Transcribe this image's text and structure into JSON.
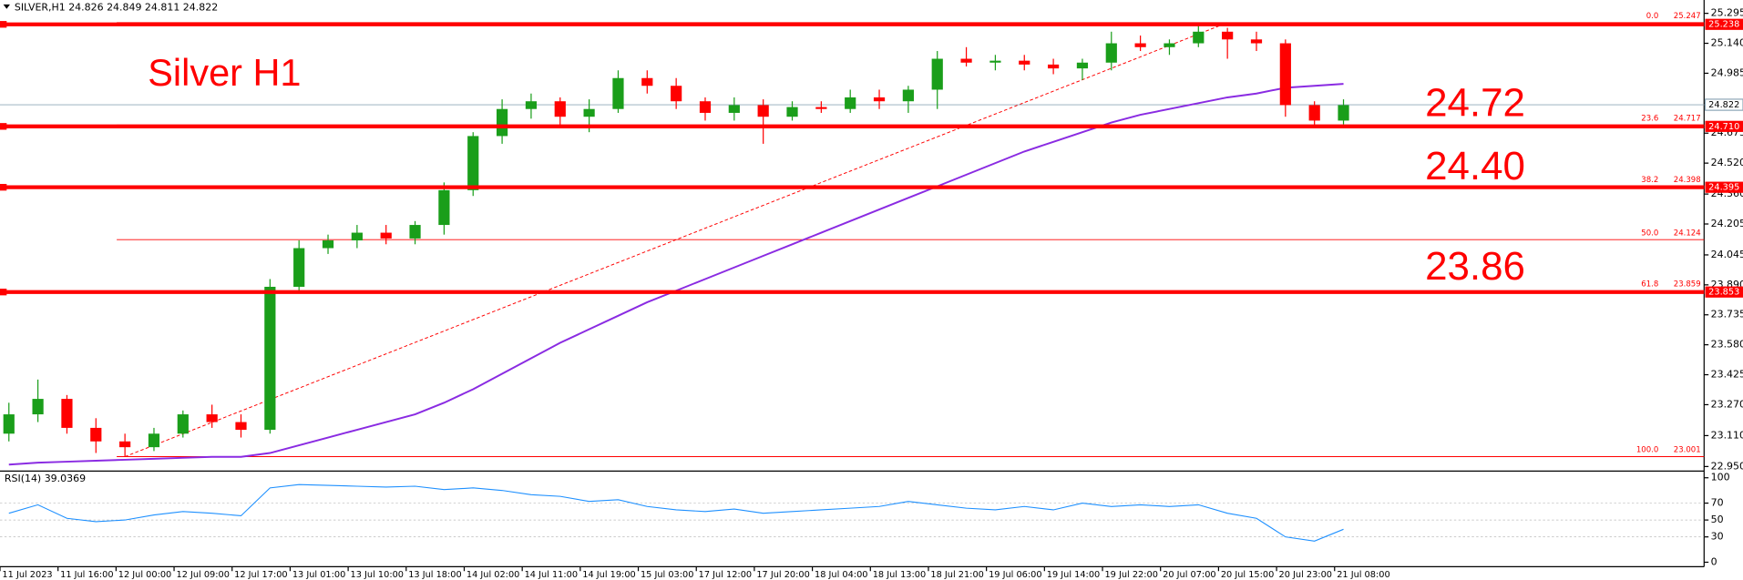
{
  "chart_data": {
    "type": "candlestick",
    "header": "SILVER,H1 24.826 24.849 24.811 24.822",
    "title": "Silver H1",
    "categories": [
      "11 Jul 2023",
      null,
      "11 Jul 16:00",
      null,
      "12 Jul 00:00",
      null,
      "12 Jul 09:00",
      null,
      "12 Jul 17:00",
      null,
      "13 Jul 01:00",
      null,
      "13 Jul 10:00",
      null,
      "13 Jul 18:00",
      null,
      "14 Jul 02:00",
      null,
      "14 Jul 11:00",
      null,
      "14 Jul 19:00",
      null,
      "15 Jul 03:00",
      null,
      "17 Jul 12:00",
      null,
      "17 Jul 20:00",
      null,
      "18 Jul 04:00",
      null,
      "18 Jul 13:00",
      null,
      "18 Jul 21:00",
      null,
      "19 Jul 06:00",
      null,
      "19 Jul 14:00",
      null,
      "19 Jul 22:00",
      null,
      "20 Jul 07:00",
      null,
      "20 Jul 15:00",
      null,
      "20 Jul 23:00",
      null,
      "21 Jul 08:00"
    ],
    "ohlc": [
      [
        23.12,
        23.28,
        23.08,
        23.22
      ],
      [
        23.22,
        23.4,
        23.18,
        23.3
      ],
      [
        23.3,
        23.32,
        23.12,
        23.15
      ],
      [
        23.15,
        23.2,
        23.02,
        23.08
      ],
      [
        23.08,
        23.12,
        23.0,
        23.05
      ],
      [
        23.05,
        23.15,
        23.03,
        23.12
      ],
      [
        23.12,
        23.24,
        23.1,
        23.22
      ],
      [
        23.22,
        23.27,
        23.15,
        23.18
      ],
      [
        23.18,
        23.22,
        23.1,
        23.14
      ],
      [
        23.14,
        23.92,
        23.12,
        23.88
      ],
      [
        23.88,
        24.12,
        23.85,
        24.08
      ],
      [
        24.08,
        24.15,
        24.05,
        24.12
      ],
      [
        24.12,
        24.2,
        24.08,
        24.16
      ],
      [
        24.16,
        24.2,
        24.1,
        24.13
      ],
      [
        24.13,
        24.22,
        24.1,
        24.2
      ],
      [
        24.2,
        24.42,
        24.15,
        24.38
      ],
      [
        24.38,
        24.68,
        24.35,
        24.66
      ],
      [
        24.66,
        24.85,
        24.62,
        24.8
      ],
      [
        24.8,
        24.88,
        24.75,
        24.84
      ],
      [
        24.84,
        24.86,
        24.7,
        24.76
      ],
      [
        24.76,
        24.85,
        24.68,
        24.8
      ],
      [
        24.8,
        25.0,
        24.78,
        24.96
      ],
      [
        24.96,
        25.0,
        24.88,
        24.92
      ],
      [
        24.92,
        24.96,
        24.8,
        24.84
      ],
      [
        24.84,
        24.86,
        24.74,
        24.78
      ],
      [
        24.78,
        24.86,
        24.74,
        24.82
      ],
      [
        24.82,
        24.85,
        24.62,
        24.76
      ],
      [
        24.76,
        24.84,
        24.74,
        24.81
      ],
      [
        24.81,
        24.84,
        24.78,
        24.8
      ],
      [
        24.8,
        24.9,
        24.78,
        24.86
      ],
      [
        24.86,
        24.9,
        24.8,
        24.84
      ],
      [
        24.84,
        24.92,
        24.78,
        24.9
      ],
      [
        24.9,
        25.1,
        24.8,
        25.06
      ],
      [
        25.06,
        25.12,
        25.02,
        25.04
      ],
      [
        25.04,
        25.08,
        25.0,
        25.05
      ],
      [
        25.05,
        25.08,
        25.0,
        25.03
      ],
      [
        25.03,
        25.06,
        24.98,
        25.01
      ],
      [
        25.01,
        25.06,
        24.95,
        25.04
      ],
      [
        25.04,
        25.2,
        25.0,
        25.14
      ],
      [
        25.14,
        25.18,
        25.1,
        25.12
      ],
      [
        25.12,
        25.16,
        25.08,
        25.14
      ],
      [
        25.14,
        25.24,
        25.12,
        25.2
      ],
      [
        25.2,
        25.22,
        25.06,
        25.16
      ],
      [
        25.16,
        25.2,
        25.1,
        25.14
      ],
      [
        25.14,
        25.16,
        24.76,
        24.82
      ],
      [
        24.82,
        24.84,
        24.7,
        24.74
      ],
      [
        24.74,
        24.85,
        24.72,
        24.82
      ]
    ],
    "up_color": "#1a9e1a",
    "down_color": "#ff0000",
    "ma": {
      "color": "#8a2be2",
      "values": [
        22.96,
        22.97,
        22.975,
        22.98,
        22.985,
        22.99,
        22.995,
        23.0,
        23.0,
        23.02,
        23.06,
        23.1,
        23.14,
        23.18,
        23.22,
        23.28,
        23.35,
        23.43,
        23.51,
        23.59,
        23.66,
        23.73,
        23.8,
        23.86,
        23.92,
        23.98,
        24.04,
        24.1,
        24.16,
        24.22,
        24.28,
        24.34,
        24.4,
        24.46,
        24.52,
        24.58,
        24.63,
        24.68,
        24.73,
        24.77,
        24.8,
        24.83,
        24.86,
        24.88,
        24.91,
        24.92,
        24.93
      ]
    },
    "ylim": [
      22.932,
      25.364
    ],
    "yticks": [
      25.295,
      {
        "value": 25.14,
        "label": "25.140"
      },
      24.985,
      {
        "value": 24.83,
        "label": "24.830"
      },
      24.675,
      {
        "value": 24.52,
        "label": "24.520"
      },
      {
        "value": 24.36,
        "label": "24.360"
      },
      24.205,
      24.045,
      {
        "value": 23.89,
        "label": "23.890"
      },
      23.735,
      {
        "value": 23.58,
        "label": "23.580"
      },
      23.425,
      {
        "value": 23.27,
        "label": "23.270"
      },
      {
        "value": 23.11,
        "label": "23.110"
      },
      {
        "value": 22.95,
        "label": "22.950"
      }
    ],
    "current_price": 24.822,
    "levels": [
      25.238,
      {
        "value": 24.71,
        "label": "24.710"
      },
      24.395,
      23.853
    ],
    "level_color": "#ff0000",
    "fib": [
      {
        "level": "0.0",
        "price": 25.247
      },
      {
        "level": "23.6",
        "price": 24.717
      },
      {
        "level": "38.2",
        "price": 24.398
      },
      {
        "level": "50.0",
        "price": 24.124
      },
      {
        "level": "61.8",
        "price": 23.859
      },
      {
        "level": "100.0",
        "price": 23.001
      }
    ],
    "annotations": [
      "24.72",
      "24.40",
      "23.86"
    ],
    "rsi": {
      "label": "RSI(14) 39.0369",
      "color": "#1e90ff",
      "ylim": [
        0,
        100
      ],
      "yticks": [
        100,
        70,
        50,
        30,
        0
      ],
      "values": [
        58,
        68,
        52,
        48,
        50,
        56,
        60,
        58,
        55,
        88,
        92,
        91,
        90,
        89,
        90,
        86,
        88,
        85,
        80,
        78,
        72,
        74,
        66,
        62,
        60,
        63,
        58,
        60,
        62,
        64,
        66,
        72,
        68,
        64,
        62,
        66,
        62,
        70,
        66,
        68,
        66,
        68,
        58,
        52,
        30,
        25,
        39
      ]
    }
  }
}
